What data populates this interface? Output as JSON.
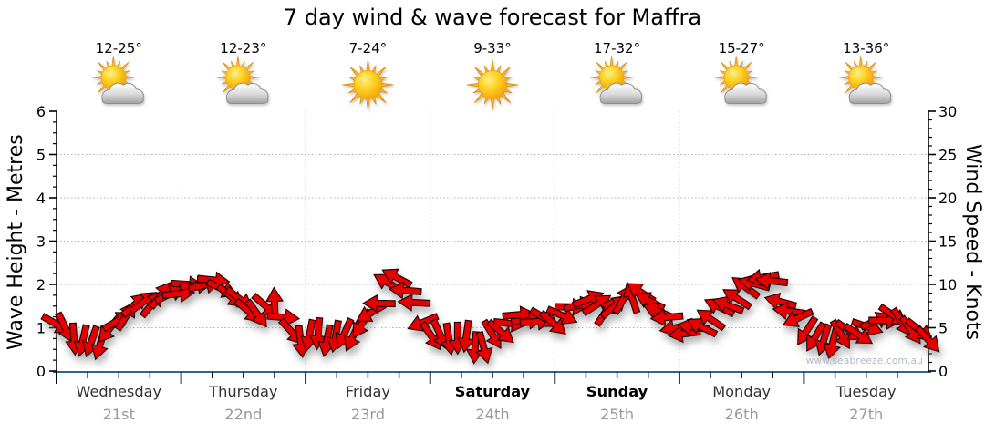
{
  "chart_data": {
    "type": "wind-arrow-forecast",
    "title": "7 day wind & wave forecast for Maffra",
    "watermark": "www.seabreeze.com.au",
    "left_axis": {
      "label": "Wave Height - Metres",
      "min": 0,
      "max": 6,
      "major_ticks": [
        0,
        1,
        2,
        3,
        4,
        5,
        6
      ],
      "minor_step": 0.25
    },
    "right_axis": {
      "label": "Wind Speed - Knots",
      "min": 0,
      "max": 30,
      "major_ticks": [
        0,
        5,
        10,
        15,
        20,
        25,
        30
      ],
      "minor_step": 1
    },
    "grid": {
      "horizontal_at": [
        1,
        2,
        3,
        4,
        5
      ],
      "vertical_at_day_boundaries": true
    },
    "days": [
      {
        "name": "Wednesday",
        "date": "21st",
        "temp": "12-25°",
        "icon": "partly-cloudy",
        "weekend": false
      },
      {
        "name": "Thursday",
        "date": "22nd",
        "temp": "12-23°",
        "icon": "partly-cloudy",
        "weekend": false
      },
      {
        "name": "Friday",
        "date": "23rd",
        "temp": "7-24°",
        "icon": "sunny",
        "weekend": false
      },
      {
        "name": "Saturday",
        "date": "24th",
        "temp": "9-33°",
        "icon": "sunny",
        "weekend": true
      },
      {
        "name": "Sunday",
        "date": "25th",
        "temp": "17-32°",
        "icon": "partly-cloudy",
        "weekend": true
      },
      {
        "name": "Monday",
        "date": "26th",
        "temp": "15-27°",
        "icon": "partly-cloudy",
        "weekend": false
      },
      {
        "name": "Tuesday",
        "date": "27th",
        "temp": "13-36°",
        "icon": "partly-cloudy",
        "weekend": false
      }
    ],
    "wind": {
      "interval_hours": 1.68,
      "dir_unit": "degrees clockwise from pointing-east",
      "points": [
        {
          "kn": 5.4,
          "dir": 30
        },
        {
          "kn": 5.0,
          "dir": 64
        },
        {
          "kn": 3.7,
          "dir": 86
        },
        {
          "kn": 3.5,
          "dir": 103
        },
        {
          "kn": 3.4,
          "dir": 109
        },
        {
          "kn": 3.1,
          "dir": 107
        },
        {
          "kn": 4.8,
          "dir": 129
        },
        {
          "kn": 5.8,
          "dir": 330
        },
        {
          "kn": 6.4,
          "dir": 302
        },
        {
          "kn": 7.7,
          "dir": 318
        },
        {
          "kn": 8.0,
          "dir": 324
        },
        {
          "kn": 7.8,
          "dir": 309
        },
        {
          "kn": 8.8,
          "dir": 308
        },
        {
          "kn": 8.9,
          "dir": 333
        },
        {
          "kn": 8.9,
          "dir": 355
        },
        {
          "kn": 10.0,
          "dir": 4
        },
        {
          "kn": 9.9,
          "dir": 354
        },
        {
          "kn": 9.9,
          "dir": 348
        },
        {
          "kn": 10.5,
          "dir": 6
        },
        {
          "kn": 9.5,
          "dir": 24
        },
        {
          "kn": 8.6,
          "dir": 39
        },
        {
          "kn": 8.3,
          "dir": 38
        },
        {
          "kn": 6.9,
          "dir": 41
        },
        {
          "kn": 6.6,
          "dir": 54
        },
        {
          "kn": 7.5,
          "dir": 41
        },
        {
          "kn": 7.8,
          "dir": 268
        },
        {
          "kn": 6.2,
          "dir": 5
        },
        {
          "kn": 4.5,
          "dir": 47
        },
        {
          "kn": 3.4,
          "dir": 83
        },
        {
          "kn": 4.1,
          "dir": 101
        },
        {
          "kn": 4.3,
          "dir": 95
        },
        {
          "kn": 3.5,
          "dir": 101
        },
        {
          "kn": 4.0,
          "dir": 100
        },
        {
          "kn": 4.3,
          "dir": 114
        },
        {
          "kn": 4.0,
          "dir": 115
        },
        {
          "kn": 5.4,
          "dir": 122
        },
        {
          "kn": 6.7,
          "dir": 150
        },
        {
          "kn": 7.8,
          "dir": 181
        },
        {
          "kn": 10.2,
          "dir": 210
        },
        {
          "kn": 10.8,
          "dir": 208
        },
        {
          "kn": 9.3,
          "dir": 185
        },
        {
          "kn": 7.9,
          "dir": 183
        },
        {
          "kn": 5.6,
          "dir": 157
        },
        {
          "kn": 4.0,
          "dir": 56
        },
        {
          "kn": 4.2,
          "dir": 65
        },
        {
          "kn": 3.7,
          "dir": 81
        },
        {
          "kn": 3.8,
          "dir": 90
        },
        {
          "kn": 4.0,
          "dir": 98
        },
        {
          "kn": 2.7,
          "dir": 94
        },
        {
          "kn": 2.7,
          "dir": 75
        },
        {
          "kn": 4.2,
          "dir": 59
        },
        {
          "kn": 4.5,
          "dir": 40
        },
        {
          "kn": 5.5,
          "dir": 6
        },
        {
          "kn": 6.5,
          "dir": 355
        },
        {
          "kn": 5.8,
          "dir": 356
        },
        {
          "kn": 5.7,
          "dir": 356
        },
        {
          "kn": 6.1,
          "dir": 31
        },
        {
          "kn": 5.5,
          "dir": 41
        },
        {
          "kn": 6.4,
          "dir": 24
        },
        {
          "kn": 7.4,
          "dir": 1
        },
        {
          "kn": 7.6,
          "dir": 348
        },
        {
          "kn": 8.3,
          "dir": 338
        },
        {
          "kn": 7.7,
          "dir": 327
        },
        {
          "kn": 6.9,
          "dir": 303
        },
        {
          "kn": 7.5,
          "dir": 320
        },
        {
          "kn": 8.3,
          "dir": 300
        },
        {
          "kn": 8.5,
          "dir": 252
        },
        {
          "kn": 9.1,
          "dir": 213
        },
        {
          "kn": 8.1,
          "dir": 207
        },
        {
          "kn": 6.9,
          "dir": 203
        },
        {
          "kn": 6.2,
          "dir": 175
        },
        {
          "kn": 5.0,
          "dir": 169
        },
        {
          "kn": 4.3,
          "dir": 173
        },
        {
          "kn": 5.1,
          "dir": 188
        },
        {
          "kn": 5.1,
          "dir": 207
        },
        {
          "kn": 6.0,
          "dir": 214
        },
        {
          "kn": 7.4,
          "dir": 206
        },
        {
          "kn": 7.6,
          "dir": 201
        },
        {
          "kn": 8.4,
          "dir": 213
        },
        {
          "kn": 9.7,
          "dir": 216
        },
        {
          "kn": 10.1,
          "dir": 195
        },
        {
          "kn": 10.8,
          "dir": 170
        },
        {
          "kn": 10.4,
          "dir": 186
        },
        {
          "kn": 8.0,
          "dir": 195
        },
        {
          "kn": 6.9,
          "dir": 188
        },
        {
          "kn": 6.1,
          "dir": 155
        },
        {
          "kn": 4.6,
          "dir": 123
        },
        {
          "kn": 3.9,
          "dir": 121
        },
        {
          "kn": 3.6,
          "dir": 107
        },
        {
          "kn": 3.2,
          "dir": 104
        },
        {
          "kn": 4.2,
          "dir": 59
        },
        {
          "kn": 4.6,
          "dir": 34
        },
        {
          "kn": 4.2,
          "dir": 33
        },
        {
          "kn": 5.1,
          "dir": 19
        },
        {
          "kn": 5.8,
          "dir": 337
        },
        {
          "kn": 5.8,
          "dir": 2
        },
        {
          "kn": 6.4,
          "dir": 34
        },
        {
          "kn": 5.6,
          "dir": 57
        },
        {
          "kn": 4.7,
          "dir": 55
        },
        {
          "kn": 4.7,
          "dir": 38
        },
        {
          "kn": 3.6,
          "dir": 48
        }
      ]
    },
    "colors": {
      "arrow_red": "#e60505",
      "arrow_outline": "#1a0000",
      "bottom_axis_blue": "#31658e",
      "grid_gray": "#b0b0b0",
      "day_name": "#333333",
      "day_date": "#999999",
      "watermark": "#b3b9c3"
    }
  }
}
